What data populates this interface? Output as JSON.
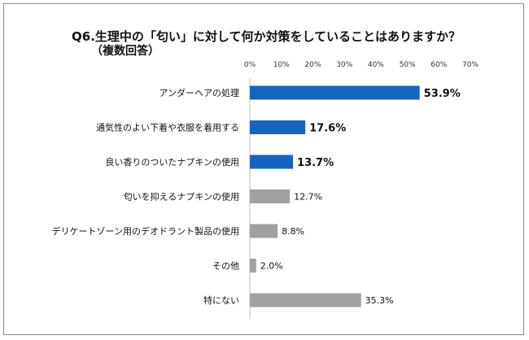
{
  "chart_data": {
    "type": "bar",
    "orientation": "horizontal",
    "title": "Q6.生理中の「匂い」に対して何か対策をしていることはありますか？",
    "subtitle": "（複数回答）",
    "xlim": [
      0,
      70
    ],
    "tick_labels": [
      "0%",
      "10%",
      "20%",
      "30%",
      "40%",
      "50%",
      "60%",
      "70%"
    ],
    "categories": [
      "アンダーヘアの処理",
      "通気性のよい下着や衣服を着用する",
      "良い香りのついたナプキンの使用",
      "匂いを抑えるナプキンの使用",
      "デリケートゾーン用のデオドラント製品の使用",
      "その他",
      "特にない"
    ],
    "values": [
      53.9,
      17.6,
      13.7,
      12.7,
      8.8,
      2.0,
      35.3
    ],
    "value_labels": [
      "53.9%",
      "17.6%",
      "13.7%",
      "12.7%",
      "8.8%",
      "2.0%",
      "35.3%"
    ],
    "highlighted": [
      true,
      true,
      true,
      false,
      false,
      false,
      false
    ],
    "colors": {
      "highlight": "#1565c0",
      "normal": "#a0a0a0",
      "axis": "#bdbdbd"
    }
  }
}
